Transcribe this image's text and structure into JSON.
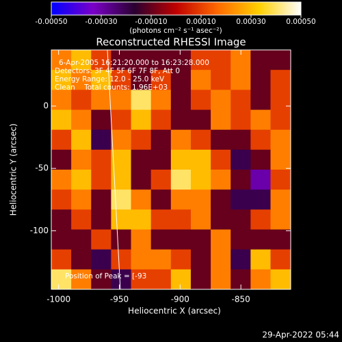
{
  "chart_data": {
    "type": "heatmap",
    "title": "Reconstructed RHESSI Image",
    "xlabel": "Heliocentric X (arcsec)",
    "ylabel": "Heliocentric Y (arcsec)",
    "colorbar_label": "(photons cm⁻² s⁻¹ asec⁻²)",
    "annotations": [
      "6-Apr-2005 16:21:20.000 to 16:23:28.000",
      "Detectors: 3F 4F 5F 6F 7F 8F, Att 0",
      "Energy Range: 12.0 - 25.0 keV",
      "Clean    Total counts: 1.96E+03",
      "Position of Peak = [-93"
    ],
    "footer": "29-Apr-2022 05:44",
    "colorscale": [
      "#0000ff",
      "#7a00c8",
      "#2a0030",
      "#c00000",
      "#ff6a00",
      "#ffd000",
      "#ffffff"
    ],
    "zlim": [
      -0.0005,
      0.0005
    ],
    "zticks": [
      {
        "value": -0.0005,
        "label": "-0.00050"
      },
      {
        "value": -0.0003,
        "label": "-0.00030"
      },
      {
        "value": -0.0001,
        "label": "-0.00010"
      },
      {
        "value": 0.0001,
        "label": "0.00010"
      },
      {
        "value": 0.0003,
        "label": "0.00030"
      },
      {
        "value": 0.0005,
        "label": "0.00050"
      }
    ],
    "xlim": [
      -1006,
      -809
    ],
    "ylim": [
      -147,
      45
    ],
    "xticks": [
      -1000,
      -950,
      -900,
      -850
    ],
    "yticks": [
      0,
      -50,
      -100
    ],
    "x": [
      -997.8,
      -981.4,
      -965.0,
      -948.6,
      -932.2,
      -915.8,
      -899.4,
      -883.0,
      -866.6,
      -850.2,
      -833.8,
      -817.4
    ],
    "y": [
      37,
      21,
      5,
      -11,
      -27,
      -43,
      -59,
      -75,
      -91,
      -107,
      -123,
      -139
    ],
    "z": [
      [
        0.0002,
        0.0003,
        0.0001,
        -0.0001,
        -0.0001,
        -0.0001,
        -0.0001,
        0.0001,
        0.0001,
        0.0002,
        -0.0001,
        -0.0001
      ],
      [
        0.0003,
        0.0002,
        0.0003,
        0.0001,
        -0.0001,
        0.0001,
        -0.0001,
        0.0002,
        0.0001,
        0.0002,
        -0.0001,
        0.0001
      ],
      [
        0.0002,
        0.0001,
        0.0002,
        0.0002,
        0.0004,
        0.0002,
        -0.0001,
        0.0001,
        0.0002,
        0.0001,
        -0.0001,
        0.0001
      ],
      [
        0.0003,
        0.0002,
        -0.0001,
        0.0001,
        0.0003,
        0.0001,
        -0.0001,
        -0.0001,
        0.0002,
        0.0001,
        0.0002,
        0.0001
      ],
      [
        0.0001,
        0.0003,
        -0.0002,
        0.0002,
        0.0001,
        -0.0001,
        0.0002,
        0.0001,
        -0.0001,
        -0.0001,
        0.0001,
        0.0002
      ],
      [
        -0.0001,
        0.0002,
        0.0001,
        0.0003,
        -0.0001,
        -0.0001,
        0.0003,
        0.0003,
        0.0001,
        -0.0002,
        -0.0001,
        0.0002
      ],
      [
        0.0002,
        0.0003,
        0.0001,
        0.0003,
        -0.0001,
        0.0001,
        0.0004,
        0.0003,
        0.0002,
        -0.0001,
        -0.0003,
        0.0001
      ],
      [
        0.0001,
        0.0002,
        -0.0001,
        0.0004,
        0.0002,
        -0.0001,
        0.0002,
        0.0002,
        -0.0001,
        -0.0002,
        -0.0002,
        0.0002
      ],
      [
        -0.0001,
        0.0001,
        -0.0001,
        0.0003,
        0.0003,
        0.0001,
        0.0001,
        0.0002,
        -0.0001,
        -0.0001,
        0.0001,
        0.0002
      ],
      [
        -0.0001,
        -0.0001,
        0.0001,
        -0.0001,
        0.0002,
        -0.0001,
        -0.0001,
        -0.0001,
        0.0002,
        -0.0001,
        -0.0001,
        -0.0001
      ],
      [
        0.0001,
        -0.0001,
        -0.0002,
        0.0001,
        0.0002,
        0.0002,
        0.0001,
        -0.0001,
        0.0002,
        -0.0002,
        0.0003,
        0.0001
      ],
      [
        0.0004,
        0.0002,
        -0.0001,
        -0.0002,
        0.0001,
        0.0001,
        0.0003,
        -0.0001,
        0.0002,
        -0.0001,
        0.0002,
        0.0003
      ]
    ]
  }
}
